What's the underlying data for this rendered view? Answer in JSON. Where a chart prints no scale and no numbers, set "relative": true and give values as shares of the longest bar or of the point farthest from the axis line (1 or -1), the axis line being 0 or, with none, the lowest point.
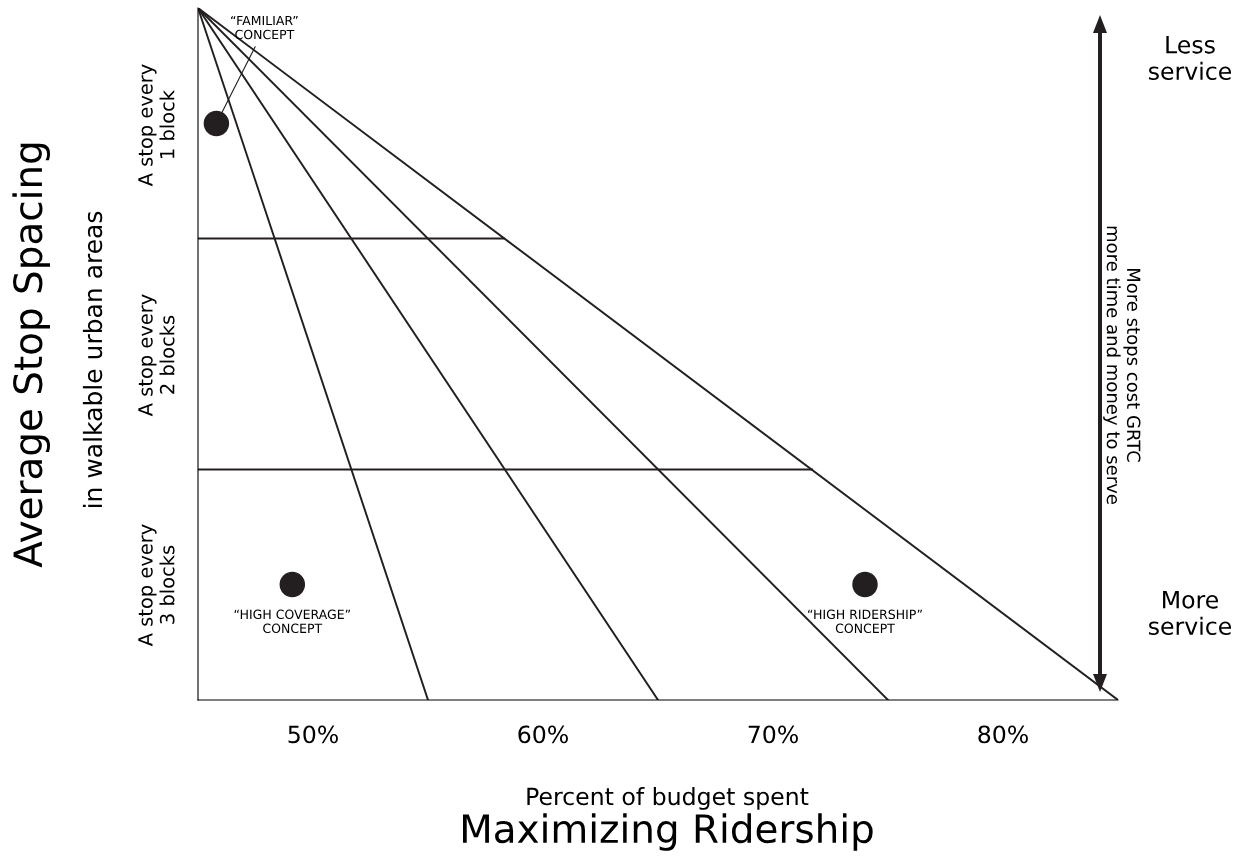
{
  "chart_data": {
    "type": "scatter",
    "relative": true,
    "ylabel": "Average Stop Spacing",
    "xlabel": "Percent of budget spent",
    "xlim": [
      45,
      85
    ],
    "xticks": [
      {
        "value": 50,
        "label": "50%"
      },
      {
        "value": 60,
        "label": "60%"
      },
      {
        "value": 70,
        "label": "70%"
      },
      {
        "value": 80,
        "label": "80%"
      }
    ],
    "grid": false,
    "series": [
      {
        "type": "line",
        "color": "#231f20",
        "x": [
          45,
          55
        ],
        "values": [
          1,
          0
        ]
      },
      {
        "type": "line",
        "color": "#231f20",
        "x": [
          45,
          65
        ],
        "values": [
          1,
          0
        ]
      },
      {
        "type": "line",
        "color": "#231f20",
        "x": [
          45,
          75
        ],
        "values": [
          1,
          0
        ]
      },
      {
        "type": "line",
        "color": "#231f20",
        "x": [
          45,
          85
        ],
        "values": [
          1,
          0
        ]
      },
      {
        "type": "line",
        "color": "#231f20",
        "x": [
          45,
          58.3
        ],
        "values": [
          0.667,
          0.667
        ]
      },
      {
        "type": "line",
        "color": "#231f20",
        "x": [
          45,
          71.7
        ],
        "values": [
          0.333,
          0.333
        ]
      },
      {
        "color": "#231f20",
        "marker": "circle",
        "x": [
          45.8,
          49.1,
          74.0
        ],
        "values": [
          0.833,
          0.167,
          0.167
        ]
      }
    ],
    "annotations": [
      "in walkable urban areas",
      {
        "text": "“FAMILIAR”\nCONCEPT",
        "x": 45.8,
        "y": 0.833
      },
      {
        "text": "“HIGH COVERAGE”\nCONCEPT",
        "x": 49.1,
        "y": 0.167
      },
      {
        "text": "“HIGH RIDERSHIP”\nCONCEPT",
        "x": 74.0,
        "y": 0.167
      },
      "Maximizing Ridership",
      "Less\nservice",
      "More\nservice",
      "More stops cost GRTC\nmore time and money to serve",
      "A stop every\n1 block",
      "A stop every\n2 blocks",
      "A stop every\n3 blocks"
    ]
  }
}
